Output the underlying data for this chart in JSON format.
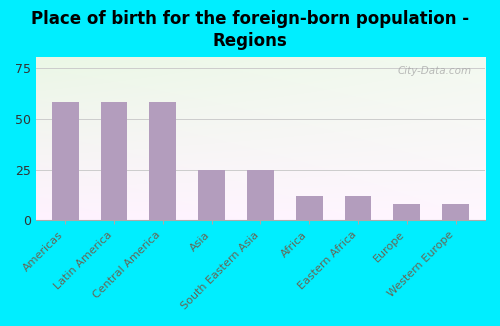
{
  "categories": [
    "Americas",
    "Latin America",
    "Central America",
    "Asia",
    "South Eastern Asia",
    "Africa",
    "Eastern Africa",
    "Europe",
    "Western Europe"
  ],
  "values": [
    58,
    58,
    58,
    25,
    25,
    12,
    12,
    8,
    8
  ],
  "bar_color": "#b39dbd",
  "background_outer": "#00eeff",
  "title_line1": "Place of birth for the foreign-born population -",
  "title_line2": "Regions",
  "title_color": "#000000",
  "title_fontsize": 12,
  "yticks": [
    0,
    25,
    50,
    75
  ],
  "ylim": [
    0,
    80
  ],
  "watermark": "City-Data.com",
  "xlabel_fontsize": 8,
  "tick_label_color": "#666655",
  "ytick_label_color": "#333333",
  "grid_color": "#cccccc",
  "spine_color": "#aaaaaa"
}
